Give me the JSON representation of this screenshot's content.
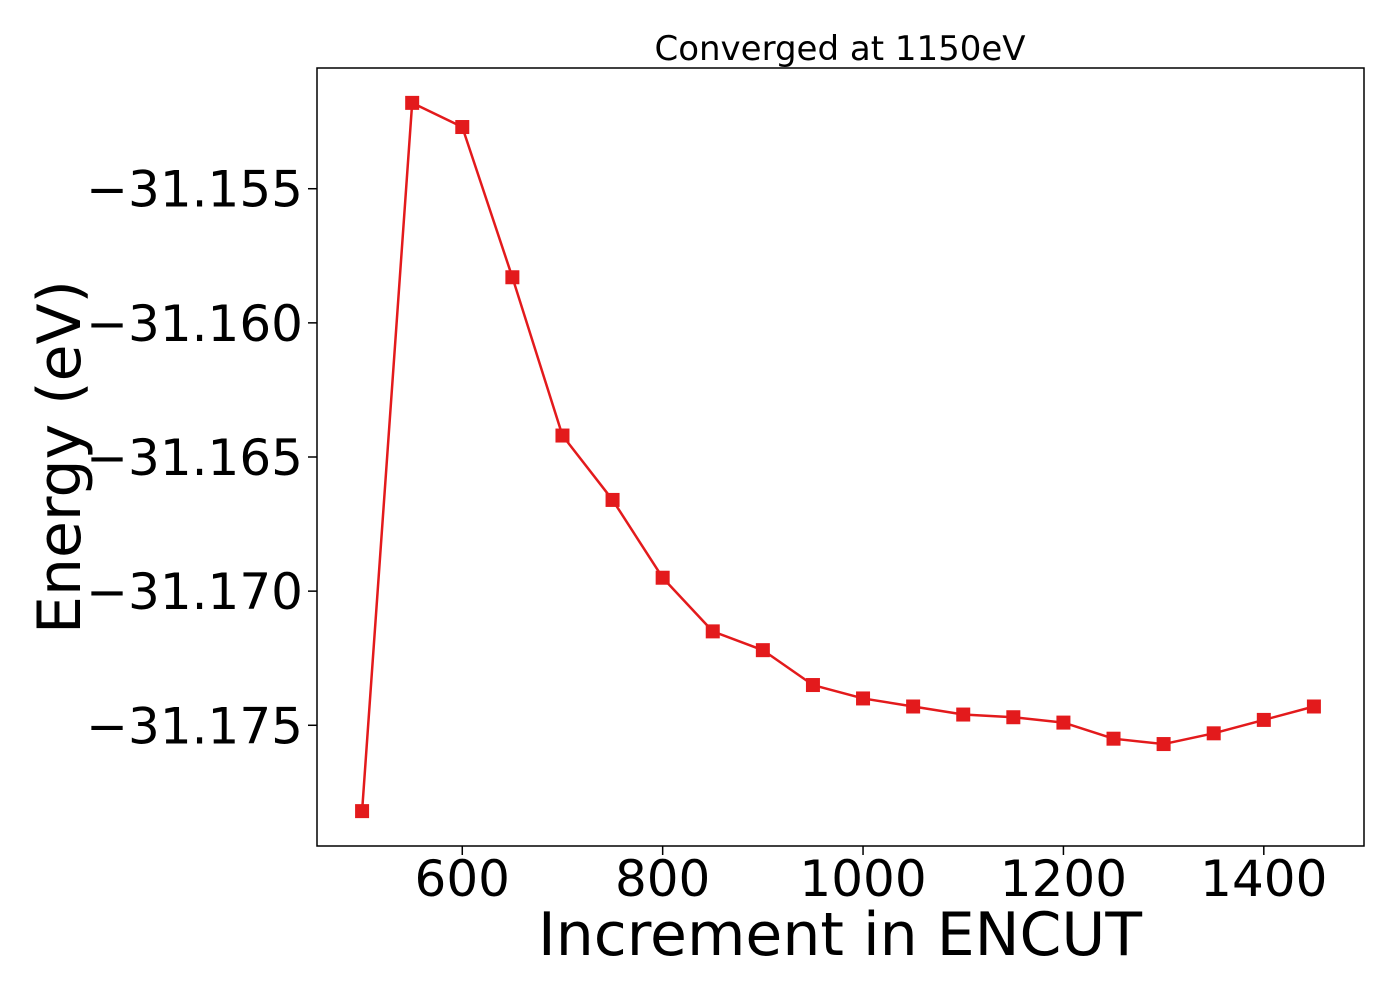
{
  "chart_data": {
    "type": "line",
    "title": "Converged at 1150eV",
    "xlabel": "Increment in ENCUT",
    "ylabel": "Energy (eV)",
    "xlim": [
      455,
      1500
    ],
    "ylim": [
      -31.1795,
      -31.1505
    ],
    "x_ticks": [
      600,
      800,
      1000,
      1200,
      1400
    ],
    "x_tick_labels": [
      "600",
      "800",
      "1000",
      "1200",
      "1400"
    ],
    "y_ticks": [
      -31.155,
      -31.16,
      -31.165,
      -31.17,
      -31.175
    ],
    "y_tick_labels": [
      "−31.155",
      "−31.160",
      "−31.165",
      "−31.170",
      "−31.175"
    ],
    "grid": false,
    "series": [
      {
        "color": "#e31a1c",
        "marker": "square",
        "x": [
          500,
          550,
          600,
          650,
          700,
          750,
          800,
          850,
          900,
          950,
          1000,
          1050,
          1100,
          1150,
          1200,
          1250,
          1300,
          1350,
          1400,
          1450
        ],
        "y": [
          -31.1782,
          -31.1518,
          -31.1527,
          -31.1583,
          -31.1642,
          -31.1666,
          -31.1695,
          -31.1715,
          -31.1722,
          -31.1735,
          -31.174,
          -31.1743,
          -31.1746,
          -31.1747,
          -31.1749,
          -31.1755,
          -31.1757,
          -31.1753,
          -31.1748,
          -31.1743
        ]
      }
    ]
  }
}
